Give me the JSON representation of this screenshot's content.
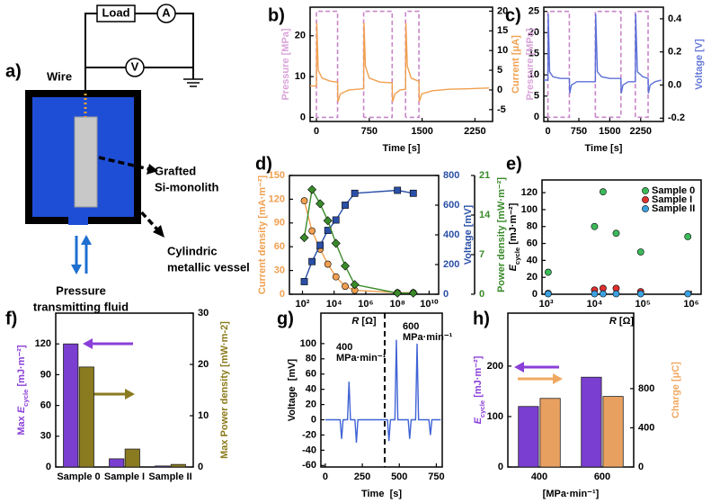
{
  "diagram": {
    "panel_label": "a)",
    "load": "Load",
    "ammeter": "A",
    "voltmeter": "V",
    "wire": "Wire",
    "monolith": [
      "Grafted",
      "Si-monolith"
    ],
    "vessel": [
      "Cylindric",
      "metallic vessel"
    ],
    "fluid": [
      "Pressure",
      "transmitting fluid"
    ]
  },
  "chart_data": [
    {
      "type": "line",
      "panel_label": "b)",
      "xlabel": "Time [s]",
      "ylabel": "Pressure [MPa]",
      "ylabel_color": "#d9a3d9",
      "y2label": "Current [μA]",
      "y2label_color": "#f0a050",
      "xlim": [
        -90,
        2500
      ],
      "xticks": [
        0,
        750,
        1500,
        2250
      ],
      "ylim": [
        -1,
        27
      ],
      "yticks": [
        0,
        10,
        20
      ],
      "y2lim": [
        -8,
        21
      ],
      "y2ticks": [
        -5,
        0,
        5,
        10,
        15,
        20
      ],
      "series": [
        {
          "color": "#c985c9",
          "dash": true,
          "x": [
            0,
            0,
            300,
            300,
            0,
            0,
            670,
            670,
            1075,
            1075,
            670,
            670,
            1265,
            1265,
            1455,
            1455,
            1265
          ],
          "values": [
            0,
            26,
            26,
            0,
            0,
            null,
            0,
            26,
            26,
            0,
            0,
            null,
            0,
            26,
            26,
            0,
            0
          ]
        },
        {
          "color": "#f0a050",
          "axis": "y2",
          "x": [
            -90,
            0,
            5,
            25,
            80,
            200,
            300,
            305,
            340,
            460,
            670,
            675,
            695,
            750,
            900,
            1075,
            1080,
            1115,
            1190,
            1265,
            1270,
            1290,
            1345,
            1455,
            1460,
            1495,
            1650,
            1900,
            2150,
            2300,
            2450
          ],
          "values": [
            1,
            1,
            17,
            5,
            3,
            2.2,
            2,
            -3,
            -1,
            0,
            0.3,
            17,
            6,
            3,
            2,
            1.8,
            -3,
            -1,
            0,
            0.2,
            17,
            6,
            3,
            2.2,
            -3,
            -1,
            -0.2,
            0.2,
            0.3,
            0.4,
            0.5
          ]
        }
      ]
    },
    {
      "type": "line",
      "panel_label": "c)",
      "xlabel": "Time [s]",
      "ylabel": "Pressure [MPa]",
      "ylabel_color": "#d9a3d9",
      "y2label": "Voltage [V]",
      "y2label_color": "#6478d8",
      "xlim": [
        -100,
        2800
      ],
      "xticks": [
        0,
        750,
        1500,
        2250
      ],
      "ylim": [
        -1,
        26
      ],
      "yticks": [
        0,
        5,
        10,
        15,
        20,
        25
      ],
      "y2lim": [
        -0.22,
        0.47
      ],
      "y2ticks": [
        -0.2,
        {
          "value": 0,
          "label": "0.0"
        },
        0.2,
        0.4
      ],
      "series": [
        {
          "color": "#c985c9",
          "dash": true,
          "x": [
            0,
            0,
            520,
            520,
            0,
            0,
            1150,
            1150,
            1770,
            1770,
            1150,
            1150,
            2120,
            2120,
            2430,
            2430,
            2120
          ],
          "values": [
            0,
            25,
            25,
            0,
            0,
            null,
            0,
            25,
            25,
            0,
            0,
            null,
            0,
            25,
            25,
            0,
            0
          ]
        },
        {
          "color": "#5b6fd6",
          "axis": "y2",
          "x": [
            -100,
            0,
            8,
            40,
            120,
            300,
            520,
            528,
            570,
            700,
            1150,
            1158,
            1200,
            1300,
            1500,
            1770,
            1778,
            1820,
            1950,
            2120,
            2128,
            2170,
            2300,
            2430,
            2438,
            2480,
            2600,
            2750
          ],
          "values": [
            0.03,
            0.03,
            0.43,
            0.08,
            0.05,
            0.04,
            0.04,
            -0.05,
            0,
            0.02,
            0.02,
            0.43,
            0.08,
            0.05,
            0.04,
            0.04,
            -0.05,
            0,
            0.02,
            0.02,
            0.43,
            0.08,
            0.05,
            0.04,
            -0.05,
            0,
            0.02,
            0.03
          ]
        }
      ]
    },
    {
      "type": "line",
      "panel_label": "d)",
      "xlog": true,
      "xlabel": [
        {
          "text": "R",
          "italic": true
        },
        {
          "text": " [Ω]"
        }
      ],
      "ylabel": "Current density [mA·m⁻²]",
      "ylabel_color": "#f0a050",
      "ytick_color": "#f0a050",
      "y2label": "Voltage [mV]",
      "y2label_color": "#2a4fa6",
      "y2tick_color": "#2a4fa6",
      "y3label": "Power density [mW·m⁻²]",
      "y3label_color": "#3a8a2a",
      "y3tick_color": "#3a8a2a",
      "xlim": [
        15,
        40000000000
      ],
      "xticks": [
        {
          "value": 100,
          "label": "10²"
        },
        {
          "value": 10000,
          "label": "10⁴"
        },
        {
          "value": 1000000,
          "label": "10⁶"
        },
        {
          "value": 100000000,
          "label": "10⁸"
        },
        {
          "value": 10000000000,
          "label": "10¹⁰"
        }
      ],
      "ylim": [
        0,
        150
      ],
      "yticks": [
        0,
        30,
        60,
        90,
        120,
        150
      ],
      "y2lim": [
        0,
        800
      ],
      "y2ticks": [
        0,
        200,
        400,
        600,
        800
      ],
      "y3lim": [
        0,
        21
      ],
      "y3ticks": [
        0,
        7,
        14,
        21
      ],
      "series": [
        {
          "color": "#f0a050",
          "marker": "circle",
          "x": [
            130,
            400,
            1300,
            4000,
            13000,
            50000,
            200000,
            100000000,
            1000000000
          ],
          "values": [
            118,
            80,
            57,
            38,
            22,
            10,
            5,
            2,
            2
          ]
        },
        {
          "color": "#2a4fa6",
          "marker": "square",
          "axis": "y2",
          "x": [
            130,
            400,
            1300,
            4000,
            13000,
            50000,
            200000,
            100000000,
            1000000000
          ],
          "values": [
            85,
            220,
            330,
            430,
            500,
            600,
            680,
            700,
            680
          ]
        },
        {
          "color": "#3a8a2a",
          "marker": "diamond",
          "axis": "y3",
          "x": [
            130,
            400,
            1300,
            4000,
            13000,
            50000,
            200000,
            100000000,
            1000000000
          ],
          "values": [
            10,
            18.5,
            16,
            13,
            9,
            5,
            1.7,
            0.2,
            0.2
          ]
        }
      ]
    },
    {
      "type": "scatter",
      "panel_label": "e)",
      "xlog": true,
      "legend": "upper right",
      "xlabel": [
        {
          "text": "R",
          "italic": true
        },
        {
          "text": " [Ω]"
        }
      ],
      "ylabel": [
        {
          "text": "E",
          "italic": true
        },
        {
          "text": "cycle",
          "sub": true
        },
        {
          "text": " [mJ·m⁻²]"
        }
      ],
      "xlim": [
        820,
        1600000
      ],
      "xticks": [
        {
          "value": 1000,
          "label": "10³"
        },
        {
          "value": 10000,
          "label": "10⁴"
        },
        {
          "value": 100000,
          "label": "10⁵"
        },
        {
          "value": 1000000,
          "label": "10⁶"
        }
      ],
      "ylim": [
        0,
        135
      ],
      "yticks": [
        0,
        20,
        40,
        60,
        80,
        100,
        120
      ],
      "series": [
        {
          "name": "Sample 0",
          "color": "#3cba5a",
          "x": [
            1100,
            10000,
            15000,
            28000,
            90000,
            850000
          ],
          "values": [
            26,
            80,
            121,
            72,
            50,
            68
          ]
        },
        {
          "name": "Sample I",
          "color": "#e03030",
          "x": [
            1100,
            10000,
            15000,
            28000,
            90000,
            850000
          ],
          "values": [
            1,
            5,
            7,
            7,
            3,
            null
          ]
        },
        {
          "name": "Sample II",
          "color": "#3aa0e0",
          "x": [
            1100,
            10000,
            15000,
            28000,
            90000,
            850000
          ],
          "values": [
            0.5,
            0.5,
            0.5,
            0.5,
            0.5,
            0.5
          ]
        }
      ]
    },
    {
      "type": "bar",
      "panel_label": "f)",
      "ylabel": [
        {
          "text": "Max "
        },
        {
          "text": "E",
          "italic": true
        },
        {
          "text": "cycle",
          "sub": true
        },
        {
          "text": " [mJ·m⁻²]"
        }
      ],
      "ylabel_color": "#8a3fd8",
      "y2label": "Max Power density [mW·m-2]",
      "y2label_color": "#8a7a1a",
      "categories": [
        "Sample 0",
        "Sample I",
        "Sample II"
      ],
      "ylim": [
        0,
        150
      ],
      "yticks": [
        0,
        30,
        60,
        90,
        120
      ],
      "y2lim": [
        0,
        30
      ],
      "y2ticks": [
        0,
        10,
        20,
        30
      ],
      "series": [
        {
          "color": "#7a3ed0",
          "values": [
            120,
            8,
            1
          ]
        },
        {
          "color": "#8a7a20",
          "axis": "y2",
          "values": [
            19.5,
            3.5,
            0.5
          ]
        }
      ]
    },
    {
      "type": "line",
      "panel_label": "g)",
      "xlabel": "Time  [s]",
      "ylabel": "Voltage  [mV]",
      "annotations": [
        "400",
        "MPa·min⁻¹",
        "600",
        "MPa·min⁻¹"
      ],
      "xlim": [
        -30,
        790
      ],
      "xticks": [
        0,
        250,
        500,
        750
      ],
      "ylim": [
        -62,
        140
      ],
      "yticks": [
        -60,
        -40,
        -20,
        0,
        20,
        40,
        60,
        80,
        100
      ],
      "series": [
        {
          "color": "#3f63d4",
          "x": [
            0,
            100,
            110,
            120,
            150,
            160,
            170,
            200,
            210,
            220,
            300,
            420,
            430,
            440,
            470,
            480,
            490,
            560,
            570,
            580,
            610,
            620,
            630,
            700,
            710,
            720,
            780
          ],
          "values": [
            0,
            0,
            -25,
            0,
            0,
            50,
            0,
            0,
            -30,
            0,
            0,
            0,
            -28,
            0,
            0,
            105,
            0,
            0,
            -25,
            0,
            0,
            100,
            0,
            0,
            -20,
            0,
            0
          ]
        }
      ]
    },
    {
      "type": "bar",
      "panel_label": "h)",
      "xlabel": "[MPa·min⁻¹]",
      "ylabel": [
        {
          "text": "E",
          "italic": true
        },
        {
          "text": "cycle",
          "sub": true
        },
        {
          "text": " [mJ·m⁻²]"
        }
      ],
      "ylabel_color": "#8a3fd8",
      "y2label": "Charge [μC]",
      "y2label_color": "#f0a860",
      "categories": [
        "400",
        "600"
      ],
      "ylim": [
        0,
        305
      ],
      "yticks": [
        0,
        100,
        200
      ],
      "y2lim": [
        0,
        1570
      ],
      "y2ticks": [
        0,
        400,
        800
      ],
      "series": [
        {
          "color": "#7a3ed0",
          "values": [
            120,
            178
          ]
        },
        {
          "color": "#e8a060",
          "axis": "y2",
          "values": [
            700,
            720
          ]
        }
      ]
    }
  ]
}
